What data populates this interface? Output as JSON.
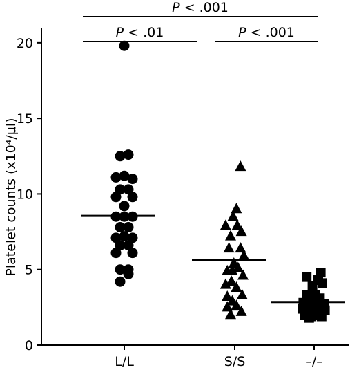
{
  "chart_data": {
    "type": "scatter",
    "title": "",
    "xlabel": "",
    "ylabel": "Platelet counts (x10⁴/μl)",
    "ylim": [
      0,
      21
    ],
    "yticks": [
      0,
      5,
      10,
      15,
      20
    ],
    "categories": [
      "L/L",
      "S/S",
      "–/–"
    ],
    "series": [
      {
        "category": "L/L",
        "marker": "circle",
        "mean": 8.55,
        "points": [
          {
            "dx": 0,
            "y": 19.8
          },
          {
            "dx": -0.5,
            "y": 12.5
          },
          {
            "dx": 0.5,
            "y": 12.6
          },
          {
            "dx": -1,
            "y": 11.1
          },
          {
            "dx": 0,
            "y": 11.2
          },
          {
            "dx": 1,
            "y": 11.0
          },
          {
            "dx": -0.5,
            "y": 10.3
          },
          {
            "dx": 0.5,
            "y": 10.3
          },
          {
            "dx": -1,
            "y": 9.8
          },
          {
            "dx": 1,
            "y": 9.8
          },
          {
            "dx": 0,
            "y": 9.2
          },
          {
            "dx": -1,
            "y": 8.5
          },
          {
            "dx": 0,
            "y": 8.5
          },
          {
            "dx": 1,
            "y": 8.5
          },
          {
            "dx": -0.5,
            "y": 7.8
          },
          {
            "dx": 0.5,
            "y": 7.8
          },
          {
            "dx": -1,
            "y": 7.1
          },
          {
            "dx": 0,
            "y": 7.2
          },
          {
            "dx": 1,
            "y": 7.1
          },
          {
            "dx": -0.5,
            "y": 6.6
          },
          {
            "dx": 0.5,
            "y": 6.6
          },
          {
            "dx": -1,
            "y": 6.1
          },
          {
            "dx": 1,
            "y": 6.1
          },
          {
            "dx": -0.5,
            "y": 5.0
          },
          {
            "dx": 0.5,
            "y": 5.0
          },
          {
            "dx": 0.5,
            "y": 4.7
          },
          {
            "dx": -0.5,
            "y": 4.2
          }
        ]
      },
      {
        "category": "S/S",
        "marker": "triangle",
        "mean": 5.65,
        "points": [
          {
            "dx": 0.7,
            "y": 11.8
          },
          {
            "dx": 0.2,
            "y": 9.0
          },
          {
            "dx": -0.2,
            "y": 8.5
          },
          {
            "dx": -1.1,
            "y": 7.9
          },
          {
            "dx": 0.3,
            "y": 7.9
          },
          {
            "dx": 0.8,
            "y": 7.5
          },
          {
            "dx": -0.5,
            "y": 7.2
          },
          {
            "dx": -0.7,
            "y": 6.4
          },
          {
            "dx": 0.7,
            "y": 6.4
          },
          {
            "dx": 1.1,
            "y": 5.9
          },
          {
            "dx": -0.1,
            "y": 5.4
          },
          {
            "dx": 0.4,
            "y": 5.1
          },
          {
            "dx": -0.9,
            "y": 4.9
          },
          {
            "dx": -0.3,
            "y": 4.9
          },
          {
            "dx": 1.0,
            "y": 4.6
          },
          {
            "dx": -1.1,
            "y": 4.0
          },
          {
            "dx": -0.4,
            "y": 4.2
          },
          {
            "dx": 0.2,
            "y": 3.8
          },
          {
            "dx": -0.9,
            "y": 3.2
          },
          {
            "dx": 0.9,
            "y": 3.3
          },
          {
            "dx": -0.3,
            "y": 2.9
          },
          {
            "dx": 0.2,
            "y": 2.6
          },
          {
            "dx": -0.9,
            "y": 2.5
          },
          {
            "dx": 0.8,
            "y": 2.2
          },
          {
            "dx": -0.5,
            "y": 2.0
          }
        ]
      },
      {
        "category": "–/–",
        "marker": "square",
        "mean": 2.85,
        "points": [
          {
            "dx": -0.9,
            "y": 4.5
          },
          {
            "dx": 0.8,
            "y": 4.8
          },
          {
            "dx": 0.5,
            "y": 4.3
          },
          {
            "dx": 1.0,
            "y": 4.1
          },
          {
            "dx": -0.2,
            "y": 3.9
          },
          {
            "dx": -0.9,
            "y": 3.3
          },
          {
            "dx": -0.4,
            "y": 3.2
          },
          {
            "dx": 0.1,
            "y": 3.3
          },
          {
            "dx": 0.7,
            "y": 3.1
          },
          {
            "dx": -1.3,
            "y": 2.8
          },
          {
            "dx": -0.7,
            "y": 2.9
          },
          {
            "dx": 0.4,
            "y": 2.8
          },
          {
            "dx": 1.2,
            "y": 2.7
          },
          {
            "dx": -1.4,
            "y": 2.4
          },
          {
            "dx": -0.8,
            "y": 2.3
          },
          {
            "dx": -0.3,
            "y": 2.5
          },
          {
            "dx": 0.2,
            "y": 2.3
          },
          {
            "dx": 0.8,
            "y": 2.4
          },
          {
            "dx": 1.3,
            "y": 2.3
          },
          {
            "dx": -1.1,
            "y": 2.0
          },
          {
            "dx": -0.4,
            "y": 1.9
          },
          {
            "dx": 0.3,
            "y": 2.0
          },
          {
            "dx": 0.9,
            "y": 1.9
          },
          {
            "dx": -0.6,
            "y": 1.8
          }
        ]
      }
    ],
    "significance": [
      {
        "from": 0,
        "to": 2,
        "italic": "P",
        "text": " < .001"
      },
      {
        "from": 0,
        "to": 1,
        "italic": "P",
        "text": " < .01"
      },
      {
        "from": 1,
        "to": 2,
        "italic": "P",
        "text": " < .001"
      }
    ],
    "grid": false,
    "legend": "none"
  }
}
